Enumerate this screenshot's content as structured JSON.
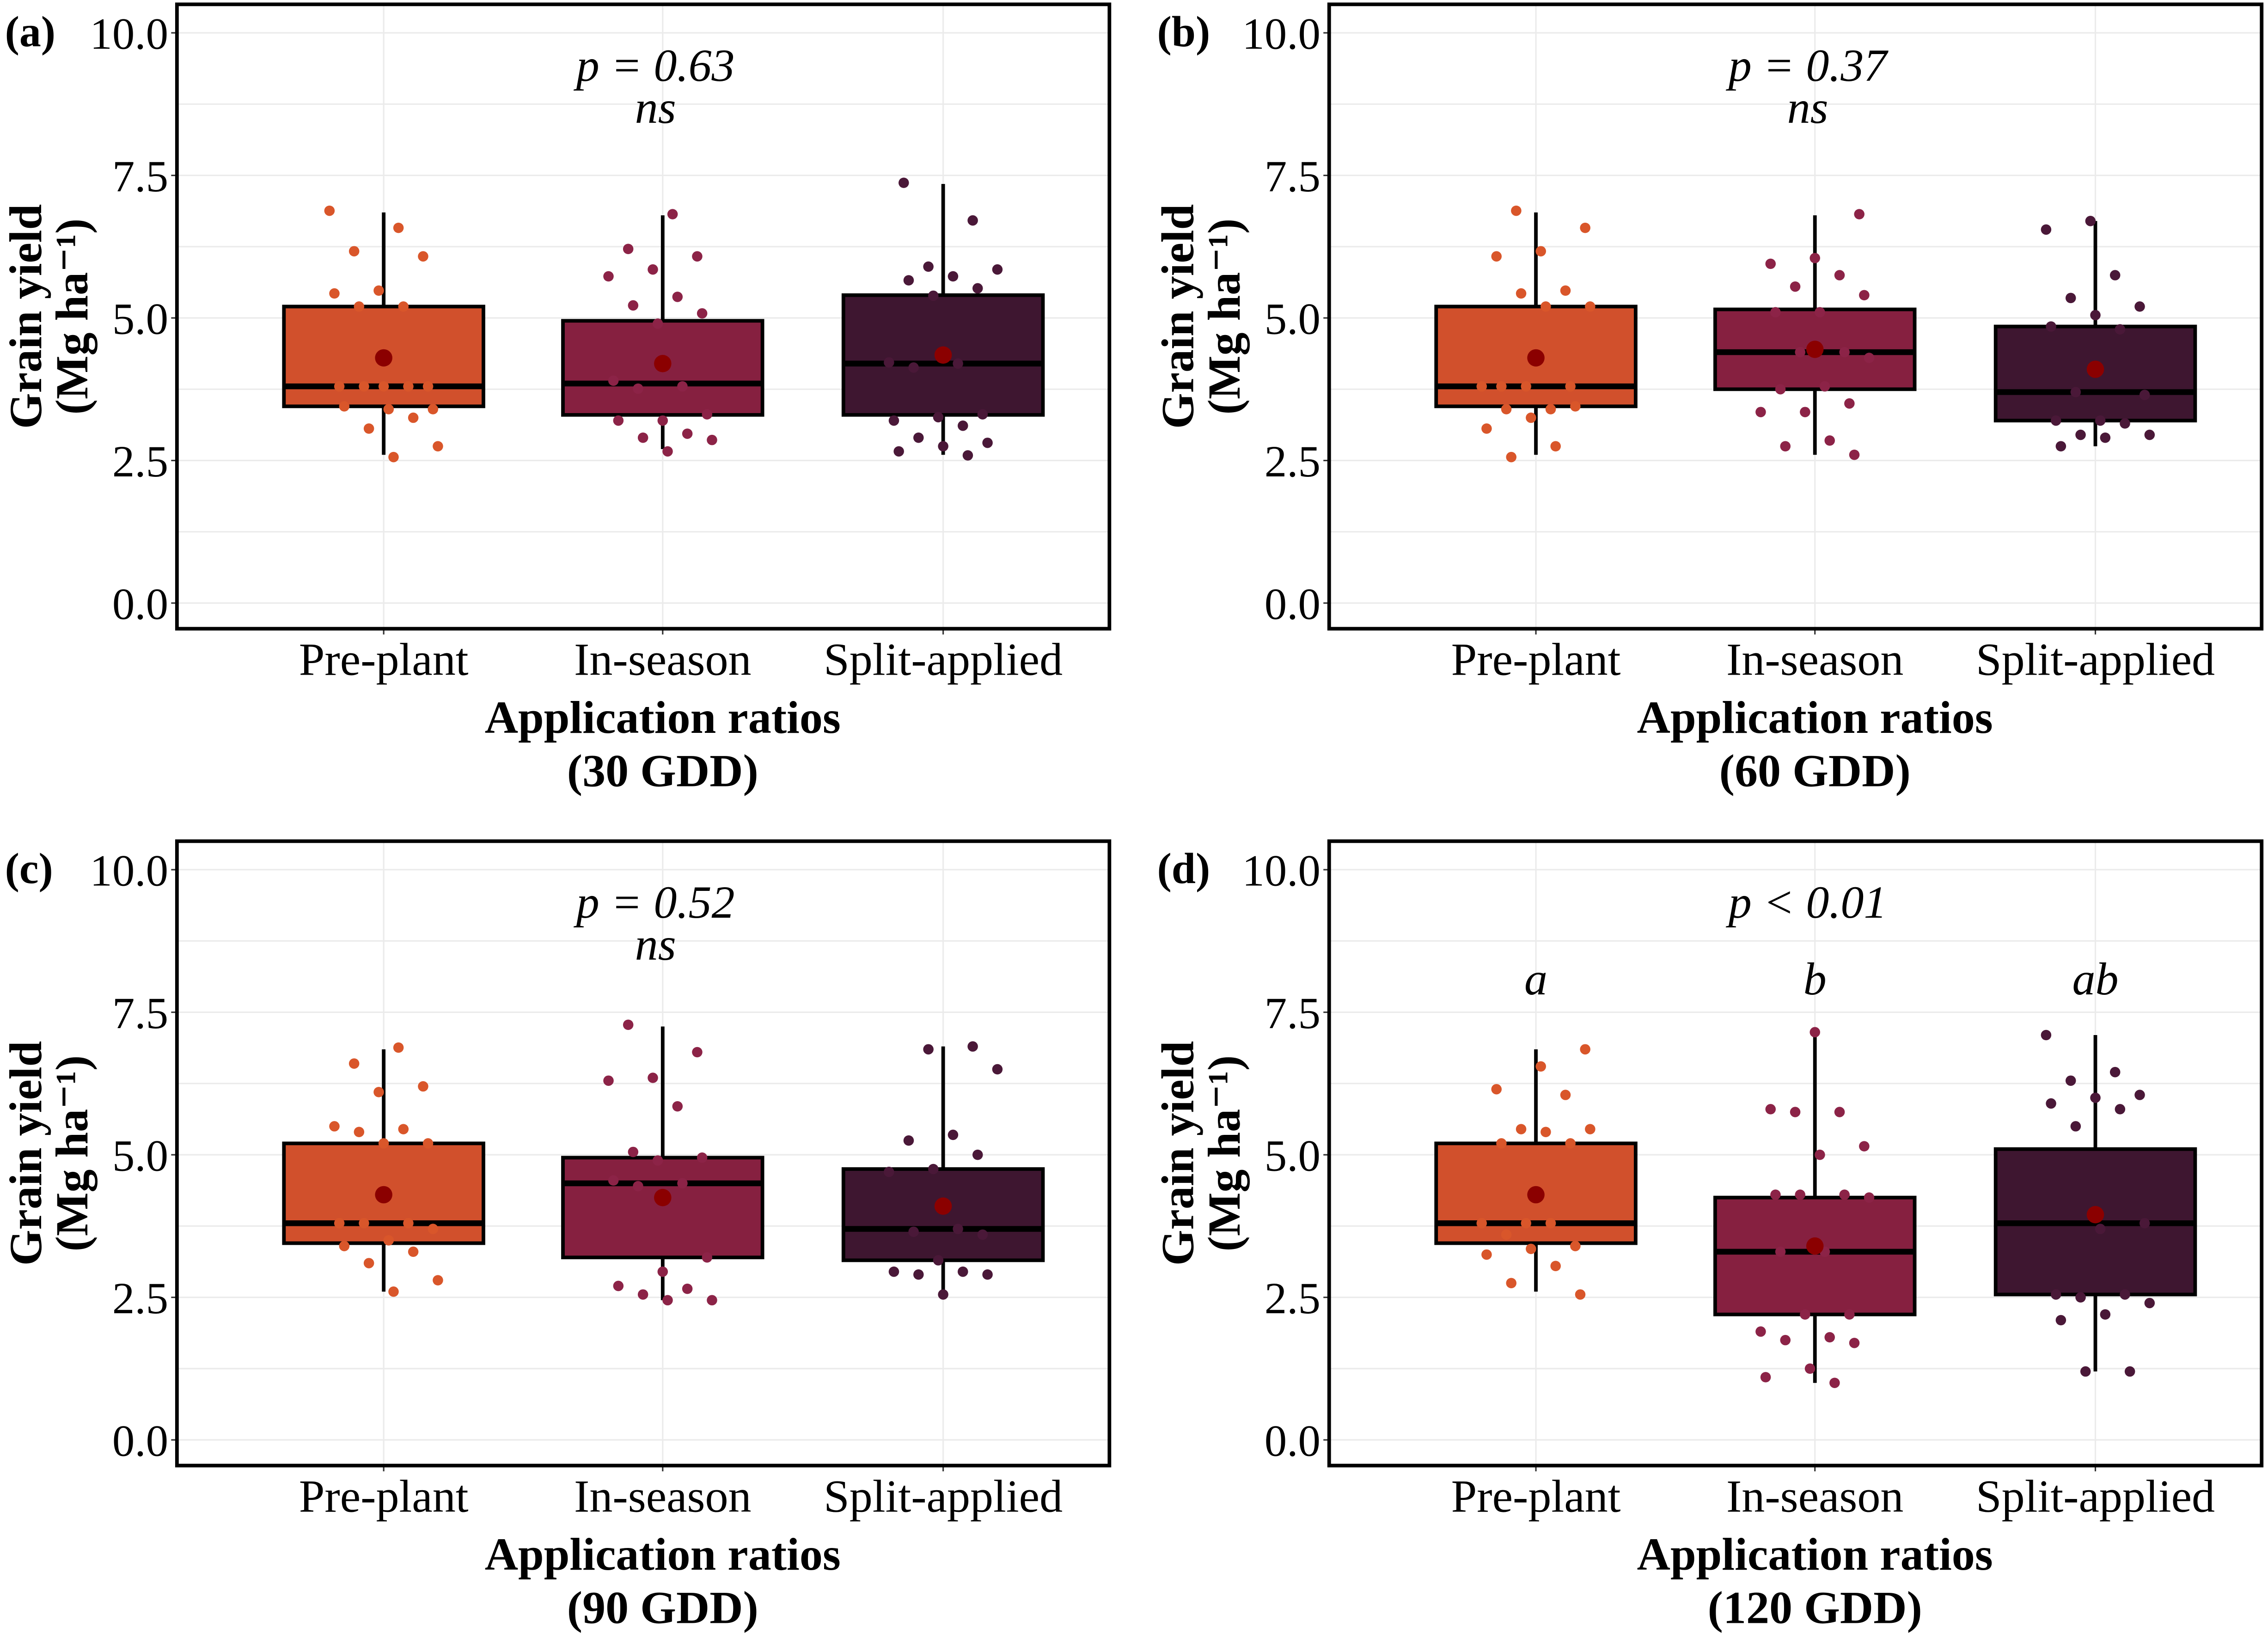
{
  "colors": {
    "pre": "#d1502c",
    "in": "#862040",
    "split": "#3e1630",
    "mean": "#8b0000",
    "pre_pt": "#d9562a",
    "in_pt": "#8c2347",
    "split_pt": "#4a1838"
  },
  "chart_data": [
    {
      "type": "box",
      "panel_label": "(a)",
      "title": "",
      "xlabel": "Application ratios",
      "xlabel2": "(30 GDD)",
      "ylabel": "Grain yield",
      "ylabel2": "(Mg ha⁻¹)",
      "ylim": [
        -0.45,
        10.5
      ],
      "yticks": [
        0,
        2.5,
        5,
        7.5,
        10
      ],
      "ytick_labels": [
        "0.0",
        "2.5",
        "5.0",
        "7.5",
        "10.0"
      ],
      "grid": true,
      "p_text": "p = 0.63",
      "sig_text": "ns",
      "groups": [
        {
          "name": "Pre-plant",
          "key": "pre",
          "q1": 3.45,
          "median": 3.8,
          "q3": 5.2,
          "whisker_low": 2.6,
          "whisker_high": 6.85,
          "mean": 4.3,
          "letter": "",
          "points": [
            6.88,
            6.58,
            6.17,
            6.08,
            5.48,
            5.43,
            5.2,
            5.2,
            3.8,
            3.8,
            3.8,
            3.8,
            3.8,
            3.4,
            3.4,
            3.45,
            3.25,
            3.06,
            2.75,
            2.56
          ]
        },
        {
          "name": "In-season",
          "key": "in",
          "q1": 3.3,
          "median": 3.85,
          "q3": 4.95,
          "whisker_low": 2.7,
          "whisker_high": 6.8,
          "mean": 4.2,
          "letter": "",
          "points": [
            6.82,
            6.21,
            6.08,
            5.85,
            5.73,
            5.37,
            5.22,
            5.08,
            4.9,
            3.9,
            3.8,
            3.76,
            3.31,
            3.2,
            3.2,
            2.97,
            2.9,
            2.86,
            2.66
          ]
        },
        {
          "name": "Split-applied",
          "key": "split",
          "q1": 3.3,
          "median": 4.2,
          "q3": 5.4,
          "whisker_low": 2.6,
          "whisker_high": 7.35,
          "mean": 4.35,
          "letter": "",
          "points": [
            7.37,
            6.71,
            5.9,
            5.85,
            5.73,
            5.66,
            5.52,
            5.39,
            4.22,
            4.2,
            4.13,
            3.31,
            3.26,
            3.2,
            3.11,
            2.9,
            2.81,
            2.75,
            2.66,
            2.59
          ]
        }
      ]
    },
    {
      "type": "box",
      "panel_label": "(b)",
      "title": "",
      "xlabel": "Application ratios",
      "xlabel2": "(60 GDD)",
      "ylabel": "Grain yield",
      "ylabel2": "(Mg ha⁻¹)",
      "ylim": [
        -0.45,
        10.5
      ],
      "yticks": [
        0,
        2.5,
        5,
        7.5,
        10
      ],
      "ytick_labels": [
        "0.0",
        "2.5",
        "5.0",
        "7.5",
        "10.0"
      ],
      "grid": true,
      "p_text": "p = 0.37",
      "sig_text": "ns",
      "groups": [
        {
          "name": "Pre-plant",
          "key": "pre",
          "q1": 3.45,
          "median": 3.8,
          "q3": 5.2,
          "whisker_low": 2.6,
          "whisker_high": 6.85,
          "mean": 4.3,
          "letter": "",
          "points": [
            6.88,
            6.58,
            6.17,
            6.08,
            5.48,
            5.43,
            5.2,
            5.2,
            3.8,
            3.8,
            3.8,
            3.8,
            3.4,
            3.4,
            3.45,
            3.25,
            3.06,
            2.75,
            2.56
          ]
        },
        {
          "name": "In-season",
          "key": "in",
          "q1": 3.75,
          "median": 4.4,
          "q3": 5.15,
          "whisker_low": 2.6,
          "whisker_high": 6.8,
          "mean": 4.45,
          "letter": "",
          "points": [
            6.82,
            6.05,
            5.95,
            5.75,
            5.55,
            5.4,
            5.1,
            5.1,
            4.4,
            4.4,
            4.3,
            3.8,
            3.75,
            3.5,
            3.35,
            3.35,
            2.85,
            2.75,
            2.6
          ]
        },
        {
          "name": "Split-applied",
          "key": "split",
          "q1": 3.2,
          "median": 3.7,
          "q3": 4.85,
          "whisker_low": 2.75,
          "whisker_high": 6.7,
          "mean": 4.1,
          "letter": "",
          "points": [
            6.7,
            6.55,
            5.75,
            5.35,
            5.2,
            5.05,
            4.85,
            4.8,
            3.7,
            3.65,
            3.2,
            3.2,
            3.15,
            2.95,
            2.95,
            2.9,
            2.75
          ]
        }
      ]
    },
    {
      "type": "box",
      "panel_label": "(c)",
      "title": "",
      "xlabel": "Application ratios",
      "xlabel2": "(90 GDD)",
      "ylabel": "Grain yield",
      "ylabel2": "(Mg ha⁻¹)",
      "ylim": [
        -0.45,
        10.5
      ],
      "yticks": [
        0,
        2.5,
        5,
        7.5,
        10
      ],
      "ytick_labels": [
        "0.0",
        "2.5",
        "5.0",
        "7.5",
        "10.0"
      ],
      "grid": true,
      "p_text": "p = 0.52",
      "sig_text": "ns",
      "groups": [
        {
          "name": "Pre-plant",
          "key": "pre",
          "q1": 3.45,
          "median": 3.8,
          "q3": 5.2,
          "whisker_low": 2.6,
          "whisker_high": 6.85,
          "mean": 4.3,
          "letter": "",
          "points": [
            6.88,
            6.6,
            6.2,
            6.1,
            5.5,
            5.45,
            5.4,
            5.2,
            5.2,
            3.8,
            3.8,
            3.8,
            3.7,
            3.5,
            3.4,
            3.3,
            3.1,
            2.8,
            2.6
          ]
        },
        {
          "name": "In-season",
          "key": "in",
          "q1": 3.2,
          "median": 4.5,
          "q3": 4.95,
          "whisker_low": 2.45,
          "whisker_high": 7.25,
          "mean": 4.25,
          "letter": "",
          "points": [
            7.28,
            6.8,
            6.35,
            6.3,
            5.85,
            5.05,
            4.95,
            4.9,
            4.55,
            4.5,
            4.45,
            3.2,
            2.95,
            2.7,
            2.65,
            2.55,
            2.45,
            2.45
          ]
        },
        {
          "name": "Split-applied",
          "key": "split",
          "q1": 3.15,
          "median": 3.7,
          "q3": 4.75,
          "whisker_low": 2.55,
          "whisker_high": 6.9,
          "mean": 4.1,
          "letter": "",
          "points": [
            6.9,
            6.85,
            6.5,
            5.35,
            5.25,
            5.0,
            4.75,
            4.7,
            3.7,
            3.65,
            3.6,
            3.15,
            2.95,
            2.95,
            2.9,
            2.9,
            2.55
          ]
        }
      ]
    },
    {
      "type": "box",
      "panel_label": "(d)",
      "title": "",
      "xlabel": "Application ratios",
      "xlabel2": "(120 GDD)",
      "ylabel": "Grain yield",
      "ylabel2": "(Mg ha⁻¹)",
      "ylim": [
        -0.45,
        10.5
      ],
      "yticks": [
        0,
        2.5,
        5,
        7.5,
        10
      ],
      "ytick_labels": [
        "0.0",
        "2.5",
        "5.0",
        "7.5",
        "10.0"
      ],
      "grid": true,
      "p_text": "p < 0.01",
      "sig_text": "",
      "groups": [
        {
          "name": "Pre-plant",
          "key": "pre",
          "q1": 3.45,
          "median": 3.8,
          "q3": 5.2,
          "whisker_low": 2.6,
          "whisker_high": 6.85,
          "mean": 4.3,
          "letter": "a",
          "points": [
            6.85,
            6.55,
            6.15,
            6.05,
            5.45,
            5.45,
            5.4,
            5.2,
            5.2,
            3.8,
            3.8,
            3.8,
            3.6,
            3.4,
            3.35,
            3.25,
            3.05,
            2.75,
            2.55
          ]
        },
        {
          "name": "In-season",
          "key": "in",
          "q1": 2.2,
          "median": 3.3,
          "q3": 4.25,
          "whisker_low": 1.0,
          "whisker_high": 7.15,
          "mean": 3.4,
          "letter": "b",
          "points": [
            7.15,
            5.8,
            5.75,
            5.75,
            5.15,
            5.0,
            4.3,
            4.3,
            4.3,
            4.25,
            3.3,
            3.3,
            2.2,
            2.2,
            1.9,
            1.8,
            1.75,
            1.7,
            1.25,
            1.1,
            1.0
          ]
        },
        {
          "name": "Split-applied",
          "key": "split",
          "q1": 2.55,
          "median": 3.8,
          "q3": 5.1,
          "whisker_low": 1.2,
          "whisker_high": 7.1,
          "mean": 3.95,
          "letter": "ab",
          "points": [
            7.1,
            6.45,
            6.3,
            6.05,
            6.0,
            5.9,
            5.8,
            5.5,
            3.8,
            3.7,
            2.55,
            2.55,
            2.5,
            2.4,
            2.2,
            2.1,
            1.2,
            1.2
          ]
        }
      ]
    }
  ]
}
